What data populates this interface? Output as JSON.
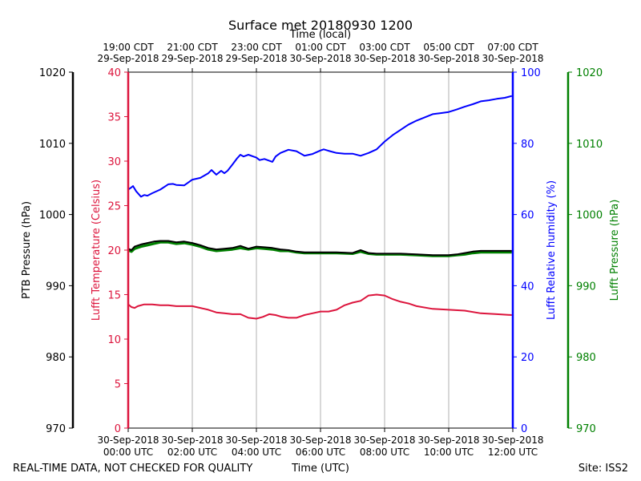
{
  "chart_data": {
    "type": "line",
    "title": "Surface met 20180930 1200",
    "top_axis_label": "Time (local)",
    "x_label": "Time (UTC)",
    "footer_left": "REAL-TIME DATA, NOT CHECKED FOR QUALITY",
    "footer_right": "Site: ISS2",
    "x_range_hours": [
      0,
      12
    ],
    "x_bottom_ticks": [
      {
        "h": 0,
        "l1": "30-Sep-2018",
        "l2": "00:00 UTC"
      },
      {
        "h": 2,
        "l1": "30-Sep-2018",
        "l2": "02:00 UTC"
      },
      {
        "h": 4,
        "l1": "30-Sep-2018",
        "l2": "04:00 UTC"
      },
      {
        "h": 6,
        "l1": "30-Sep-2018",
        "l2": "06:00 UTC"
      },
      {
        "h": 8,
        "l1": "30-Sep-2018",
        "l2": "08:00 UTC"
      },
      {
        "h": 10,
        "l1": "30-Sep-2018",
        "l2": "10:00 UTC"
      },
      {
        "h": 12,
        "l1": "30-Sep-2018",
        "l2": "12:00 UTC"
      }
    ],
    "x_top_ticks": [
      {
        "h": 0,
        "l1": "19:00 CDT",
        "l2": "29-Sep-2018"
      },
      {
        "h": 2,
        "l1": "21:00 CDT",
        "l2": "29-Sep-2018"
      },
      {
        "h": 4,
        "l1": "23:00 CDT",
        "l2": "29-Sep-2018"
      },
      {
        "h": 6,
        "l1": "01:00 CDT",
        "l2": "30-Sep-2018"
      },
      {
        "h": 8,
        "l1": "03:00 CDT",
        "l2": "30-Sep-2018"
      },
      {
        "h": 10,
        "l1": "05:00 CDT",
        "l2": "30-Sep-2018"
      },
      {
        "h": 12,
        "l1": "07:00 CDT",
        "l2": "30-Sep-2018"
      }
    ],
    "axes": {
      "ptb": {
        "label": "PTB Pressure (hPa)",
        "range": [
          970,
          1020
        ],
        "ticks": [
          "970",
          "980",
          "990",
          "1000",
          "1010",
          "1020"
        ],
        "color": "#000000"
      },
      "temp": {
        "label": "Lufft Temperature (Celsius)",
        "range": [
          0,
          40
        ],
        "ticks": [
          "0",
          "5",
          "10",
          "15",
          "20",
          "25",
          "30",
          "35",
          "40"
        ],
        "color": "#dc143c"
      },
      "rh": {
        "label": "Lufft Relative humidity (%)",
        "range": [
          0,
          100
        ],
        "ticks": [
          "0",
          "20",
          "40",
          "60",
          "80",
          "100"
        ],
        "color": "#0000ff"
      },
      "lufft_p": {
        "label": "Lufft Pressure (hPa)",
        "range": [
          970,
          1020
        ],
        "ticks": [
          "970",
          "980",
          "990",
          "1000",
          "1010",
          "1020"
        ],
        "color": "#008000"
      }
    },
    "series": [
      {
        "name": "Lufft Relative humidity (%)",
        "axis": "rh",
        "color": "#0000ff",
        "x": [
          0,
          0.08,
          0.15,
          0.25,
          0.4,
          0.5,
          0.6,
          0.75,
          1.0,
          1.25,
          1.4,
          1.5,
          1.75,
          2.0,
          2.25,
          2.5,
          2.6,
          2.75,
          2.9,
          3.0,
          3.1,
          3.25,
          3.4,
          3.5,
          3.6,
          3.75,
          3.9,
          4.0,
          4.1,
          4.25,
          4.5,
          4.6,
          4.75,
          5.0,
          5.25,
          5.5,
          5.75,
          6.0,
          6.1,
          6.25,
          6.5,
          6.75,
          7.0,
          7.25,
          7.5,
          7.75,
          8.0,
          8.25,
          8.5,
          8.75,
          9.0,
          9.25,
          9.5,
          9.75,
          10.0,
          10.25,
          10.5,
          10.75,
          11.0,
          11.25,
          11.5,
          11.75,
          11.97
        ],
        "values": [
          67,
          67.5,
          68,
          66.5,
          65,
          65.5,
          65.3,
          66,
          67,
          68.5,
          68.6,
          68.3,
          68.2,
          69.8,
          70.3,
          71.6,
          72.5,
          71.2,
          72.3,
          71.6,
          72.3,
          74,
          75.8,
          76.8,
          76.3,
          76.8,
          76.3,
          76,
          75.3,
          75.6,
          74.8,
          76.3,
          77.3,
          78.2,
          77.8,
          76.5,
          77,
          78,
          78.3,
          77.9,
          77.3,
          77.1,
          77.1,
          76.5,
          77.3,
          78.3,
          80.5,
          82.3,
          83.8,
          85.3,
          86.4,
          87.3,
          88.2,
          88.5,
          88.8,
          89.5,
          90.3,
          91,
          91.8,
          92.1,
          92.5,
          92.8,
          93.3
        ]
      },
      {
        "name": "Lufft Temperature (Celsius)",
        "axis": "temp",
        "color": "#dc143c",
        "x": [
          0,
          0.1,
          0.2,
          0.3,
          0.5,
          0.75,
          1.0,
          1.25,
          1.5,
          1.75,
          2.0,
          2.25,
          2.5,
          2.75,
          3.0,
          3.25,
          3.5,
          3.75,
          4.0,
          4.2,
          4.4,
          4.6,
          4.8,
          5.0,
          5.25,
          5.5,
          5.75,
          6.0,
          6.25,
          6.5,
          6.75,
          7.0,
          7.25,
          7.5,
          7.75,
          8.0,
          8.25,
          8.5,
          8.75,
          9.0,
          9.5,
          10.0,
          10.5,
          11.0,
          11.5,
          11.97
        ],
        "values": [
          13.9,
          13.6,
          13.5,
          13.7,
          13.9,
          13.9,
          13.8,
          13.8,
          13.7,
          13.7,
          13.7,
          13.5,
          13.3,
          13,
          12.9,
          12.8,
          12.8,
          12.4,
          12.3,
          12.5,
          12.8,
          12.7,
          12.5,
          12.4,
          12.4,
          12.7,
          12.9,
          13.1,
          13.1,
          13.3,
          13.8,
          14.1,
          14.3,
          14.9,
          15.0,
          14.9,
          14.5,
          14.2,
          14.0,
          13.7,
          13.4,
          13.3,
          13.2,
          12.9,
          12.8,
          12.7
        ]
      },
      {
        "name": "Lufft Pressure (hPa)",
        "axis": "lufft_p",
        "color": "#008000",
        "x": [
          0,
          0.1,
          0.2,
          0.4,
          0.6,
          0.8,
          1.0,
          1.25,
          1.5,
          1.75,
          2.0,
          2.25,
          2.5,
          2.75,
          3.0,
          3.25,
          3.5,
          3.75,
          4.0,
          4.25,
          4.5,
          4.75,
          5.0,
          5.25,
          5.5,
          5.75,
          6.0,
          6.5,
          7.0,
          7.25,
          7.5,
          7.75,
          8.0,
          8.5,
          9.0,
          9.5,
          10.0,
          10.25,
          10.5,
          10.75,
          11.0,
          11.5,
          11.97
        ],
        "values": [
          995.0,
          994.8,
          995.2,
          995.5,
          995.7,
          995.9,
          996.1,
          996.1,
          995.9,
          996.0,
          995.8,
          995.5,
          995.1,
          994.9,
          995.0,
          995.1,
          995.3,
          995.1,
          995.3,
          995.2,
          995.1,
          994.9,
          994.9,
          994.7,
          994.6,
          994.6,
          994.6,
          994.6,
          994.5,
          994.8,
          994.5,
          994.4,
          994.4,
          994.4,
          994.3,
          994.2,
          994.2,
          994.3,
          994.4,
          994.6,
          994.7,
          994.7,
          994.7
        ]
      },
      {
        "name": "PTB Pressure (hPa)",
        "axis": "ptb",
        "color": "#000000",
        "x": [
          0,
          0.1,
          0.2,
          0.4,
          0.6,
          0.8,
          1.0,
          1.25,
          1.5,
          1.75,
          2.0,
          2.25,
          2.5,
          2.75,
          3.0,
          3.25,
          3.5,
          3.75,
          4.0,
          4.25,
          4.5,
          4.75,
          5.0,
          5.25,
          5.5,
          5.75,
          6.0,
          6.5,
          7.0,
          7.25,
          7.5,
          7.75,
          8.0,
          8.5,
          9.0,
          9.5,
          10.0,
          10.25,
          10.5,
          10.75,
          11.0,
          11.5,
          11.97
        ],
        "values": [
          995.2,
          995.0,
          995.5,
          995.8,
          996.0,
          996.2,
          996.3,
          996.3,
          996.1,
          996.2,
          996.0,
          995.7,
          995.3,
          995.1,
          995.2,
          995.3,
          995.6,
          995.2,
          995.5,
          995.4,
          995.3,
          995.1,
          995.0,
          994.8,
          994.7,
          994.7,
          994.7,
          994.7,
          994.6,
          995.0,
          994.6,
          994.5,
          994.5,
          994.5,
          994.4,
          994.3,
          994.3,
          994.4,
          994.6,
          994.8,
          994.9,
          994.9,
          994.9
        ]
      }
    ]
  }
}
